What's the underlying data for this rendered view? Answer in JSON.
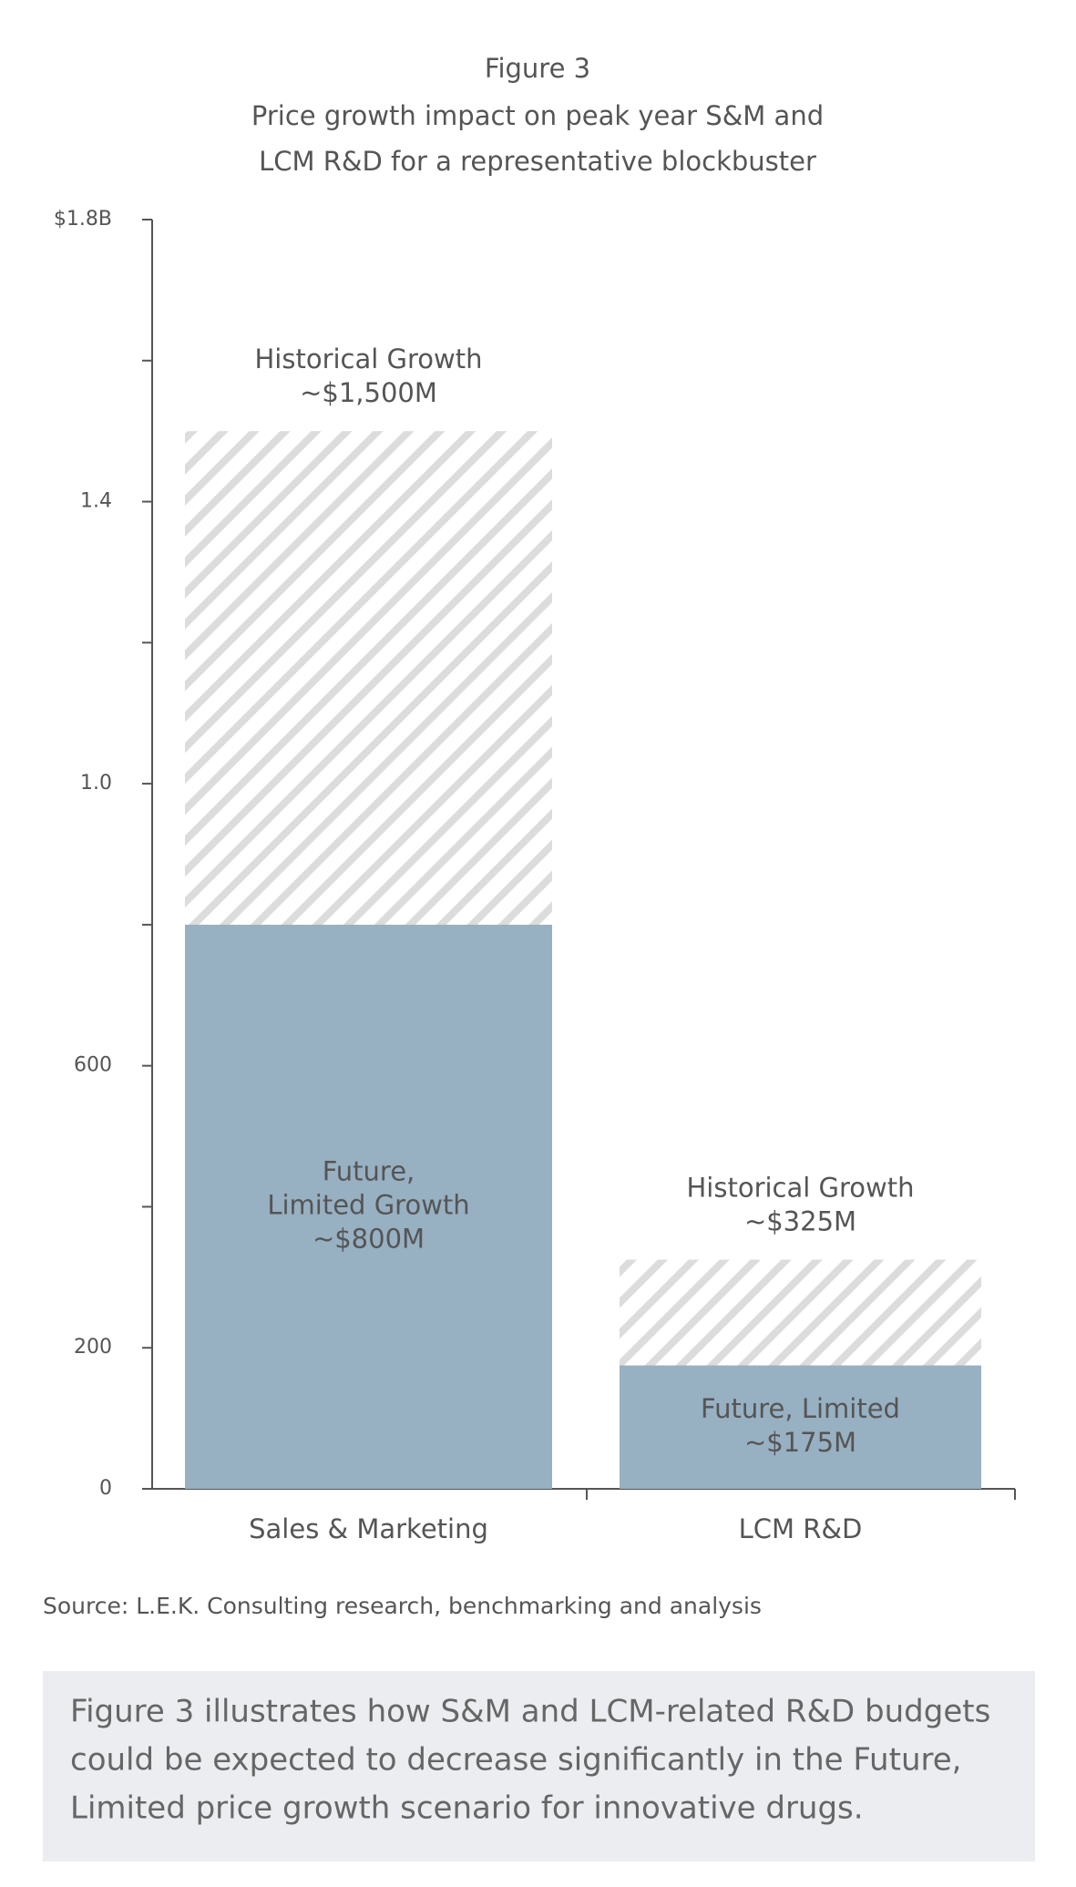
{
  "chart_data": {
    "type": "overlay_bar",
    "title": "Figure 3",
    "subtitle": [
      "Price growth impact on peak year S&M and",
      "LCM R&D for a representative blockbuster"
    ],
    "categories": [
      "Sales & Marketing",
      "LCM R&D"
    ],
    "series": [
      {
        "color": "#dcdcdc",
        "pattern": "hatch",
        "values": [
          1500,
          325
        ],
        "value_labels": [
          "~$1,500M",
          "~$325M"
        ],
        "point_labels": [
          [
            "Historical Growth"
          ],
          [
            "Historical Growth"
          ]
        ],
        "label_position": "above"
      },
      {
        "color": "#97b0c2",
        "values": [
          800,
          175
        ],
        "value_labels": [
          "~$800M",
          "~$175M"
        ],
        "point_labels": [
          [
            "Future,",
            "Limited Growth"
          ],
          [
            "Future, Limited"
          ]
        ],
        "label_position": "inside"
      }
    ],
    "ylim": [
      0,
      1800
    ],
    "yticks": [
      0,
      200,
      600,
      {
        "value": 1000,
        "label": "1.0"
      },
      {
        "value": 1400,
        "label": "1.4"
      },
      {
        "value": 1800,
        "label": "$1.8B"
      }
    ],
    "minor_yticks": [
      400,
      800,
      1200,
      1600
    ],
    "source": "Source: L.E.K. Consulting research, benchmarking and analysis"
  },
  "note": [
    "Figure 3 illustrates how S&M and LCM-related R&D budgets",
    "could be expected to decrease significantly in the Future,",
    "Limited price growth scenario for innovative drugs."
  ]
}
